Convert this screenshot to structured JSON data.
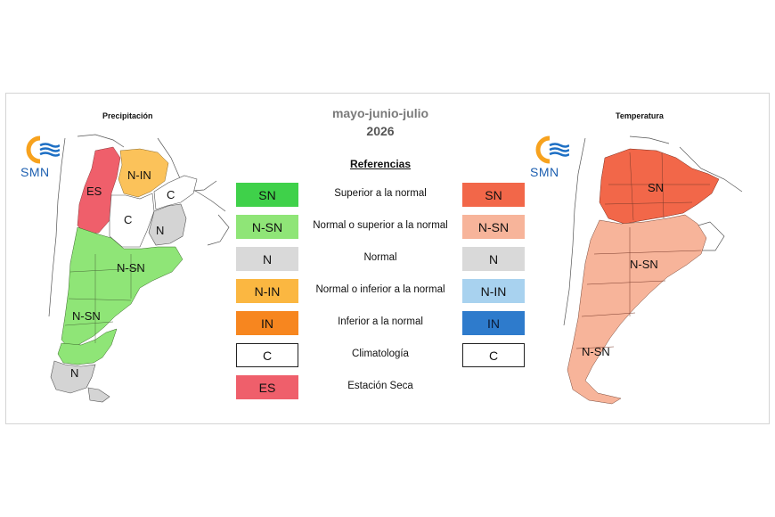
{
  "header": {
    "period": "mayo-junio-julio",
    "year": "2026"
  },
  "maps": {
    "precipitation": {
      "title": "Precipitación",
      "zone_labels": [
        "N-IN",
        "ES",
        "C",
        "C",
        "N",
        "N-SN",
        "N-SN",
        "N"
      ]
    },
    "temperature": {
      "title": "Temperatura",
      "zone_labels": [
        "SN",
        "N-SN",
        "N-SN"
      ]
    }
  },
  "logo": {
    "text": "SMN",
    "icon": "smn-sun-wave-icon"
  },
  "legend": {
    "title": "Referencias",
    "items": [
      {
        "precip_code": "SN",
        "precip_color": "#3fd14a",
        "description": "Superior a la normal",
        "temp_code": "SN",
        "temp_color": "#f26749"
      },
      {
        "precip_code": "N-SN",
        "precip_color": "#8fe577",
        "description": "Normal o superior a la normal",
        "temp_code": "N-SN",
        "temp_color": "#f7b49a"
      },
      {
        "precip_code": "N",
        "precip_color": "#d9d9d9",
        "description": "Normal",
        "temp_code": "N",
        "temp_color": "#d9d9d9"
      },
      {
        "precip_code": "N-IN",
        "precip_color": "#fbb741",
        "description": "Normal o inferior a la normal",
        "temp_code": "N-IN",
        "temp_color": "#a8d2ef"
      },
      {
        "precip_code": "IN",
        "precip_color": "#f7861f",
        "description": "Inferior a la normal",
        "temp_code": "IN",
        "temp_color": "#2e7bcc"
      },
      {
        "precip_code": "C",
        "precip_color": "#ffffff",
        "description": "Climatología",
        "temp_code": "C",
        "temp_color": "#ffffff"
      },
      {
        "precip_code": "ES",
        "precip_color": "#ef5f6b",
        "description": "Estación Seca"
      }
    ]
  }
}
